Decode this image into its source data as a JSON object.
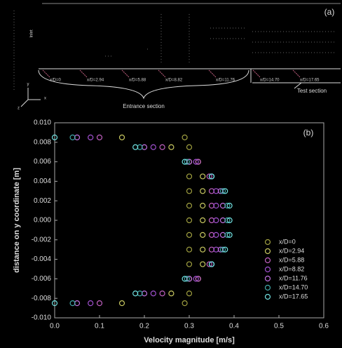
{
  "panel_a": {
    "label": "(a)",
    "inlet": "Inlet",
    "stations": [
      "x/D=0",
      "x/D=2.94",
      "x/D=5.88",
      "x/D=8.82",
      "x/D=11.76",
      "x/D=14.70",
      "x/D=17.65"
    ],
    "entrance": "Entrance section",
    "test": "Test section",
    "axis_y": "y",
    "axis_x": "x",
    "axis_z": "z"
  },
  "chart_data": {
    "type": "scatter",
    "label": "(b)",
    "x_label": "Velocity magnitude [m/s]",
    "y_label": "distance on y coordinate [m]",
    "xlim": [
      0,
      0.6
    ],
    "ylim": [
      -0.01,
      0.01
    ],
    "xticks": [
      {
        "value": 0,
        "label": "0.0"
      },
      0.1,
      0.2,
      0.3,
      0.4,
      0.5,
      0.6
    ],
    "yticks": [
      {
        "value": -0.01,
        "label": "-0.010"
      },
      {
        "value": -0.008,
        "label": "-0.008"
      },
      {
        "value": -0.006,
        "label": "-0.006"
      },
      {
        "value": -0.004,
        "label": "-0.004"
      },
      {
        "value": -0.002,
        "label": "-0.002"
      },
      {
        "value": 0,
        "label": "0.000"
      },
      {
        "value": 0.002,
        "label": "0.002"
      },
      {
        "value": 0.004,
        "label": "0.004"
      },
      {
        "value": 0.006,
        "label": "0.006"
      },
      {
        "value": 0.008,
        "label": "0.008"
      },
      {
        "value": 0.01,
        "label": "0.010"
      }
    ],
    "series": [
      {
        "name": "x/D=0",
        "color": "#a0a040",
        "x": [
          0.29,
          0.3,
          0.3,
          0.3,
          0.3,
          0.3,
          0.3,
          0.3,
          0.3,
          0.3,
          0.3,
          0.3,
          0.29
        ],
        "y": [
          -0.0085,
          -0.0075,
          -0.006,
          -0.0045,
          -0.003,
          -0.0015,
          0,
          0.0015,
          0.003,
          0.0045,
          0.006,
          0.0075,
          0.0085
        ]
      },
      {
        "name": "x/D=2.94",
        "color": "#c8c860",
        "x": [
          0.15,
          0.26,
          0.32,
          0.33,
          0.33,
          0.33,
          0.33,
          0.33,
          0.33,
          0.33,
          0.32,
          0.26,
          0.15
        ],
        "y": [
          -0.0085,
          -0.0075,
          -0.006,
          -0.0045,
          -0.003,
          -0.0015,
          0,
          0.0015,
          0.003,
          0.0045,
          0.006,
          0.0075,
          0.0085
        ]
      },
      {
        "name": "x/D=5.88",
        "color": "#c060c0",
        "x": [
          0.1,
          0.24,
          0.32,
          0.345,
          0.35,
          0.35,
          0.35,
          0.35,
          0.35,
          0.345,
          0.32,
          0.24,
          0.1
        ],
        "y": [
          -0.0085,
          -0.0075,
          -0.006,
          -0.0045,
          -0.003,
          -0.0015,
          0,
          0.0015,
          0.003,
          0.0045,
          0.006,
          0.0075,
          0.0085
        ]
      },
      {
        "name": "x/D=8.82",
        "color": "#a050d0",
        "x": [
          0.08,
          0.22,
          0.315,
          0.35,
          0.36,
          0.36,
          0.36,
          0.36,
          0.36,
          0.35,
          0.315,
          0.22,
          0.08
        ],
        "y": [
          -0.0085,
          -0.0075,
          -0.006,
          -0.0045,
          -0.003,
          -0.0015,
          0,
          0.0015,
          0.003,
          0.0045,
          0.006,
          0.0075,
          0.0085
        ]
      },
      {
        "name": "x/D=11.76",
        "color": "#c070e0",
        "x": [
          0.05,
          0.2,
          0.3,
          0.35,
          0.37,
          0.375,
          0.375,
          0.375,
          0.37,
          0.35,
          0.3,
          0.2,
          0.05
        ],
        "y": [
          -0.0085,
          -0.0075,
          -0.006,
          -0.0045,
          -0.003,
          -0.0015,
          0,
          0.0015,
          0.003,
          0.0045,
          0.006,
          0.0075,
          0.0085
        ]
      },
      {
        "name": "x/D=14.70",
        "color": "#40a8a8",
        "x": [
          0.04,
          0.19,
          0.295,
          0.35,
          0.375,
          0.385,
          0.385,
          0.385,
          0.375,
          0.35,
          0.295,
          0.19,
          0.04
        ],
        "y": [
          -0.0085,
          -0.0075,
          -0.006,
          -0.0045,
          -0.003,
          -0.0015,
          0,
          0.0015,
          0.003,
          0.0045,
          0.006,
          0.0075,
          0.0085
        ]
      },
      {
        "name": "x/D=17.65",
        "color": "#70e0e0",
        "x": [
          0,
          0.18,
          0.29,
          0.35,
          0.38,
          0.39,
          0.39,
          0.39,
          0.38,
          0.35,
          0.29,
          0.18,
          0
        ],
        "y": [
          -0.0085,
          -0.0075,
          -0.006,
          -0.0045,
          -0.003,
          -0.0015,
          0,
          0.0015,
          0.003,
          0.0045,
          0.006,
          0.0075,
          0.0085
        ]
      }
    ]
  }
}
